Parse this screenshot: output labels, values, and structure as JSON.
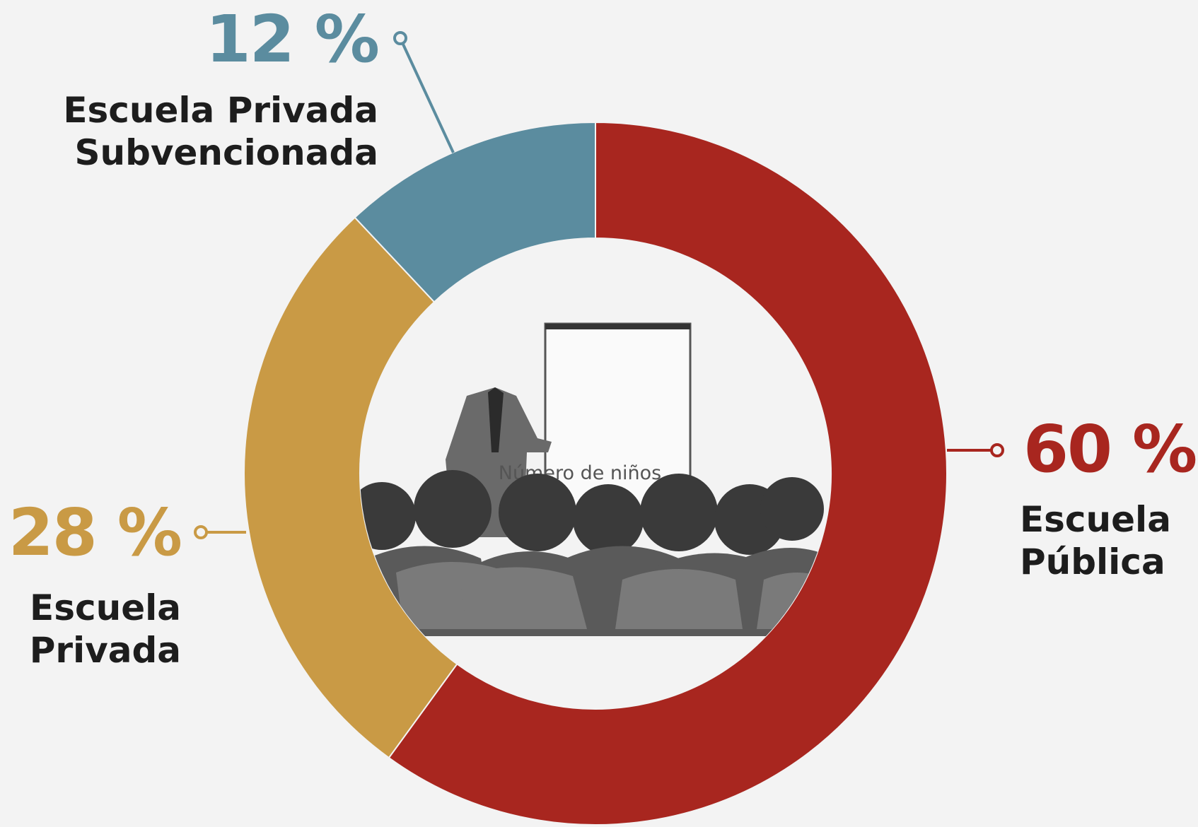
{
  "chart_data": {
    "type": "donut",
    "center_label": "Número de niños",
    "categories": [
      "Escuela Pública",
      "Escuela Privada",
      "Escuela Privada Subvencionada"
    ],
    "values": [
      60,
      28,
      12
    ],
    "value_labels": [
      "60 %",
      "28 %",
      "12 %"
    ],
    "colors": [
      "#a8261f",
      "#c99a45",
      "#5b8c9f"
    ]
  }
}
